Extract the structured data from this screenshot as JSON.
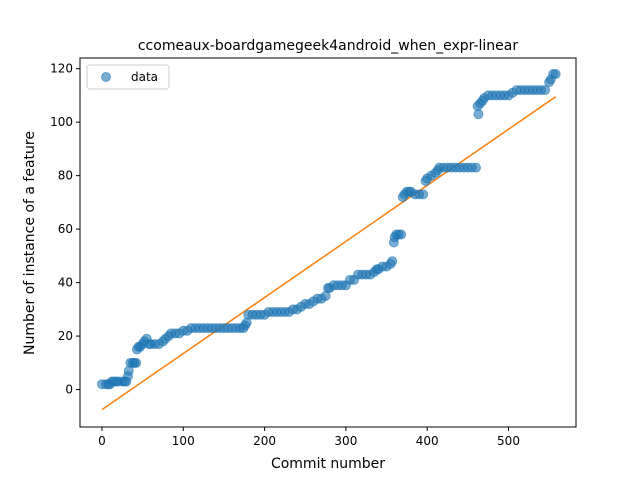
{
  "chart_data": {
    "type": "scatter",
    "title": "ccomeaux-boardgamegeek4android_when_expr-linear",
    "xlabel": "Commit number",
    "ylabel": "Number of instance of a feature",
    "xlim": [
      -27,
      583
    ],
    "ylim": [
      -14,
      124
    ],
    "xticks": [
      0,
      100,
      200,
      300,
      400,
      500
    ],
    "yticks": [
      0,
      20,
      40,
      60,
      80,
      100,
      120
    ],
    "grid": false,
    "legend": {
      "placement": "top-left",
      "entries": [
        "data"
      ]
    },
    "colors": {
      "data": "#1f77b4",
      "fit": "#ff7f0e"
    },
    "series": [
      {
        "name": "data",
        "style": "markers",
        "points": [
          [
            0,
            2
          ],
          [
            5,
            2
          ],
          [
            8,
            2
          ],
          [
            10,
            2
          ],
          [
            12,
            3
          ],
          [
            15,
            3
          ],
          [
            18,
            3
          ],
          [
            20,
            3
          ],
          [
            25,
            3
          ],
          [
            28,
            3
          ],
          [
            30,
            3
          ],
          [
            32,
            5
          ],
          [
            33,
            7
          ],
          [
            35,
            10
          ],
          [
            38,
            10
          ],
          [
            40,
            10
          ],
          [
            42,
            10
          ],
          [
            43,
            15
          ],
          [
            45,
            16
          ],
          [
            47,
            16
          ],
          [
            50,
            17
          ],
          [
            52,
            18
          ],
          [
            55,
            19
          ],
          [
            58,
            17
          ],
          [
            60,
            17
          ],
          [
            65,
            17
          ],
          [
            70,
            17
          ],
          [
            75,
            18
          ],
          [
            78,
            19
          ],
          [
            82,
            20
          ],
          [
            85,
            21
          ],
          [
            90,
            21
          ],
          [
            95,
            21
          ],
          [
            100,
            22
          ],
          [
            105,
            22
          ],
          [
            110,
            23
          ],
          [
            115,
            23
          ],
          [
            120,
            23
          ],
          [
            125,
            23
          ],
          [
            130,
            23
          ],
          [
            135,
            23
          ],
          [
            140,
            23
          ],
          [
            145,
            23
          ],
          [
            150,
            23
          ],
          [
            155,
            23
          ],
          [
            160,
            23
          ],
          [
            165,
            23
          ],
          [
            170,
            23
          ],
          [
            174,
            23
          ],
          [
            176,
            24
          ],
          [
            178,
            25
          ],
          [
            180,
            28
          ],
          [
            185,
            28
          ],
          [
            190,
            28
          ],
          [
            195,
            28
          ],
          [
            200,
            28
          ],
          [
            205,
            29
          ],
          [
            210,
            29
          ],
          [
            215,
            29
          ],
          [
            220,
            29
          ],
          [
            225,
            29
          ],
          [
            230,
            29
          ],
          [
            235,
            30
          ],
          [
            240,
            30
          ],
          [
            245,
            31
          ],
          [
            250,
            32
          ],
          [
            255,
            32
          ],
          [
            260,
            33
          ],
          [
            265,
            34
          ],
          [
            270,
            34
          ],
          [
            275,
            35
          ],
          [
            278,
            38
          ],
          [
            280,
            38
          ],
          [
            285,
            39
          ],
          [
            290,
            39
          ],
          [
            295,
            39
          ],
          [
            300,
            39
          ],
          [
            305,
            41
          ],
          [
            310,
            41
          ],
          [
            315,
            43
          ],
          [
            320,
            43
          ],
          [
            325,
            43
          ],
          [
            330,
            43
          ],
          [
            335,
            44
          ],
          [
            338,
            45
          ],
          [
            340,
            45
          ],
          [
            345,
            46
          ],
          [
            350,
            46
          ],
          [
            355,
            47
          ],
          [
            357,
            48
          ],
          [
            359,
            55
          ],
          [
            360,
            57
          ],
          [
            362,
            58
          ],
          [
            365,
            58
          ],
          [
            368,
            58
          ],
          [
            370,
            72
          ],
          [
            372,
            73
          ],
          [
            375,
            74
          ],
          [
            378,
            74
          ],
          [
            380,
            74
          ],
          [
            385,
            73
          ],
          [
            390,
            73
          ],
          [
            395,
            73
          ],
          [
            398,
            78
          ],
          [
            400,
            79
          ],
          [
            405,
            80
          ],
          [
            410,
            81
          ],
          [
            413,
            82
          ],
          [
            415,
            83
          ],
          [
            420,
            83
          ],
          [
            425,
            83
          ],
          [
            430,
            83
          ],
          [
            435,
            83
          ],
          [
            440,
            83
          ],
          [
            445,
            83
          ],
          [
            450,
            83
          ],
          [
            455,
            83
          ],
          [
            460,
            83
          ],
          [
            462,
            106
          ],
          [
            463,
            103
          ],
          [
            465,
            107
          ],
          [
            468,
            108
          ],
          [
            470,
            109
          ],
          [
            475,
            110
          ],
          [
            480,
            110
          ],
          [
            485,
            110
          ],
          [
            490,
            110
          ],
          [
            495,
            110
          ],
          [
            500,
            110
          ],
          [
            505,
            111
          ],
          [
            510,
            112
          ],
          [
            515,
            112
          ],
          [
            520,
            112
          ],
          [
            525,
            112
          ],
          [
            530,
            112
          ],
          [
            535,
            112
          ],
          [
            540,
            112
          ],
          [
            545,
            112
          ],
          [
            550,
            115
          ],
          [
            552,
            116
          ],
          [
            555,
            118
          ],
          [
            558,
            118
          ]
        ]
      },
      {
        "name": "",
        "style": "line",
        "points": [
          [
            0,
            -7.5
          ],
          [
            558,
            109.5
          ]
        ]
      }
    ]
  }
}
